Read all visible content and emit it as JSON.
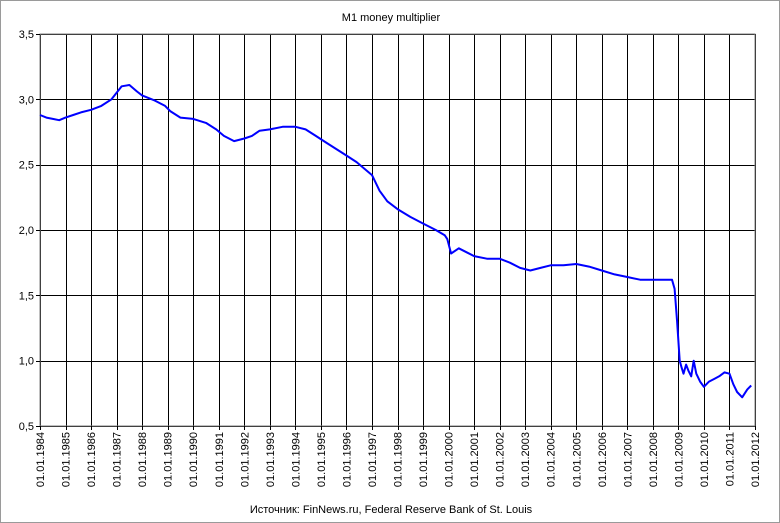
{
  "chart_data": {
    "type": "line",
    "title": "M1 money multiplier",
    "source": "Источник: FinNews.ru, Federal Reserve Bank of St. Louis",
    "xlabel": "",
    "ylabel": "",
    "ylim": [
      0.5,
      3.5
    ],
    "xlim": [
      1984,
      2012
    ],
    "y_ticks": [
      0.5,
      1.0,
      1.5,
      2.0,
      2.5,
      3.0,
      3.5
    ],
    "y_tick_labels": [
      "0,5",
      "1,0",
      "1,5",
      "2,0",
      "2,5",
      "3,0",
      "3,5"
    ],
    "x_ticks": [
      1984,
      1985,
      1986,
      1987,
      1988,
      1989,
      1990,
      1991,
      1992,
      1993,
      1994,
      1995,
      1996,
      1997,
      1998,
      1999,
      2000,
      2001,
      2002,
      2003,
      2004,
      2005,
      2006,
      2007,
      2008,
      2009,
      2010,
      2011,
      2012
    ],
    "x_tick_labels": [
      "01.01.1984",
      "01.01.1985",
      "01.01.1986",
      "01.01.1987",
      "01.01.1988",
      "01.01.1989",
      "01.01.1990",
      "01.01.1991",
      "01.01.1992",
      "01.01.1993",
      "01.01.1994",
      "01.01.1995",
      "01.01.1996",
      "01.01.1997",
      "01.01.1998",
      "01.01.1999",
      "01.01.2000",
      "01.01.2001",
      "01.01.2002",
      "01.01.2003",
      "01.01.2004",
      "01.01.2005",
      "01.01.2006",
      "01.01.2007",
      "01.01.2008",
      "01.01.2009",
      "01.01.2010",
      "01.01.2011",
      "01.01.2012"
    ],
    "grid": "vertical and horizontal",
    "legend": "none",
    "line_color": "#0000ff",
    "series": [
      {
        "x": [
          1984.0,
          1984.25,
          1984.5,
          1984.75,
          1985.0,
          1985.3,
          1985.6,
          1986.0,
          1986.4,
          1986.8,
          1987.0,
          1987.2,
          1987.5,
          1987.8,
          1988.0,
          1988.5,
          1988.9,
          1989.1,
          1989.5,
          1990.0,
          1990.5,
          1990.9,
          1991.2,
          1991.6,
          1992.0,
          1992.3,
          1992.6,
          1993.0,
          1993.5,
          1994.0,
          1994.4,
          1994.8,
          1995.2,
          1995.6,
          1996.0,
          1996.4,
          1996.7,
          1997.0,
          1997.3,
          1997.6,
          1998.0,
          1998.5,
          1999.0,
          1999.5,
          1999.85,
          1999.95,
          2000.1,
          2000.4,
          2000.7,
          2001.0,
          2001.5,
          2002.0,
          2002.4,
          2002.8,
          2003.2,
          2003.6,
          2004.0,
          2004.5,
          2005.0,
          2005.5,
          2006.0,
          2006.5,
          2007.0,
          2007.5,
          2008.0,
          2008.5,
          2008.75,
          2008.85,
          2008.95,
          2009.05,
          2009.12,
          2009.2,
          2009.3,
          2009.4,
          2009.5,
          2009.6,
          2009.7,
          2009.85,
          2010.0,
          2010.2,
          2010.4,
          2010.6,
          2010.8,
          2011.0,
          2011.15,
          2011.3,
          2011.5,
          2011.7,
          2011.85
        ],
        "values": [
          2.88,
          2.86,
          2.85,
          2.84,
          2.86,
          2.88,
          2.9,
          2.92,
          2.95,
          3.0,
          3.05,
          3.1,
          3.11,
          3.06,
          3.03,
          2.99,
          2.95,
          2.91,
          2.86,
          2.85,
          2.82,
          2.77,
          2.72,
          2.68,
          2.7,
          2.72,
          2.76,
          2.77,
          2.79,
          2.79,
          2.77,
          2.72,
          2.67,
          2.62,
          2.57,
          2.52,
          2.47,
          2.42,
          2.3,
          2.22,
          2.16,
          2.1,
          2.05,
          2.0,
          1.96,
          1.93,
          1.82,
          1.86,
          1.83,
          1.8,
          1.78,
          1.78,
          1.75,
          1.71,
          1.69,
          1.71,
          1.73,
          1.73,
          1.74,
          1.72,
          1.69,
          1.66,
          1.64,
          1.62,
          1.62,
          1.62,
          1.62,
          1.55,
          1.3,
          1.0,
          0.95,
          0.9,
          0.97,
          0.92,
          0.88,
          1.0,
          0.9,
          0.84,
          0.8,
          0.84,
          0.86,
          0.88,
          0.91,
          0.9,
          0.82,
          0.76,
          0.72,
          0.78,
          0.81
        ]
      }
    ]
  }
}
